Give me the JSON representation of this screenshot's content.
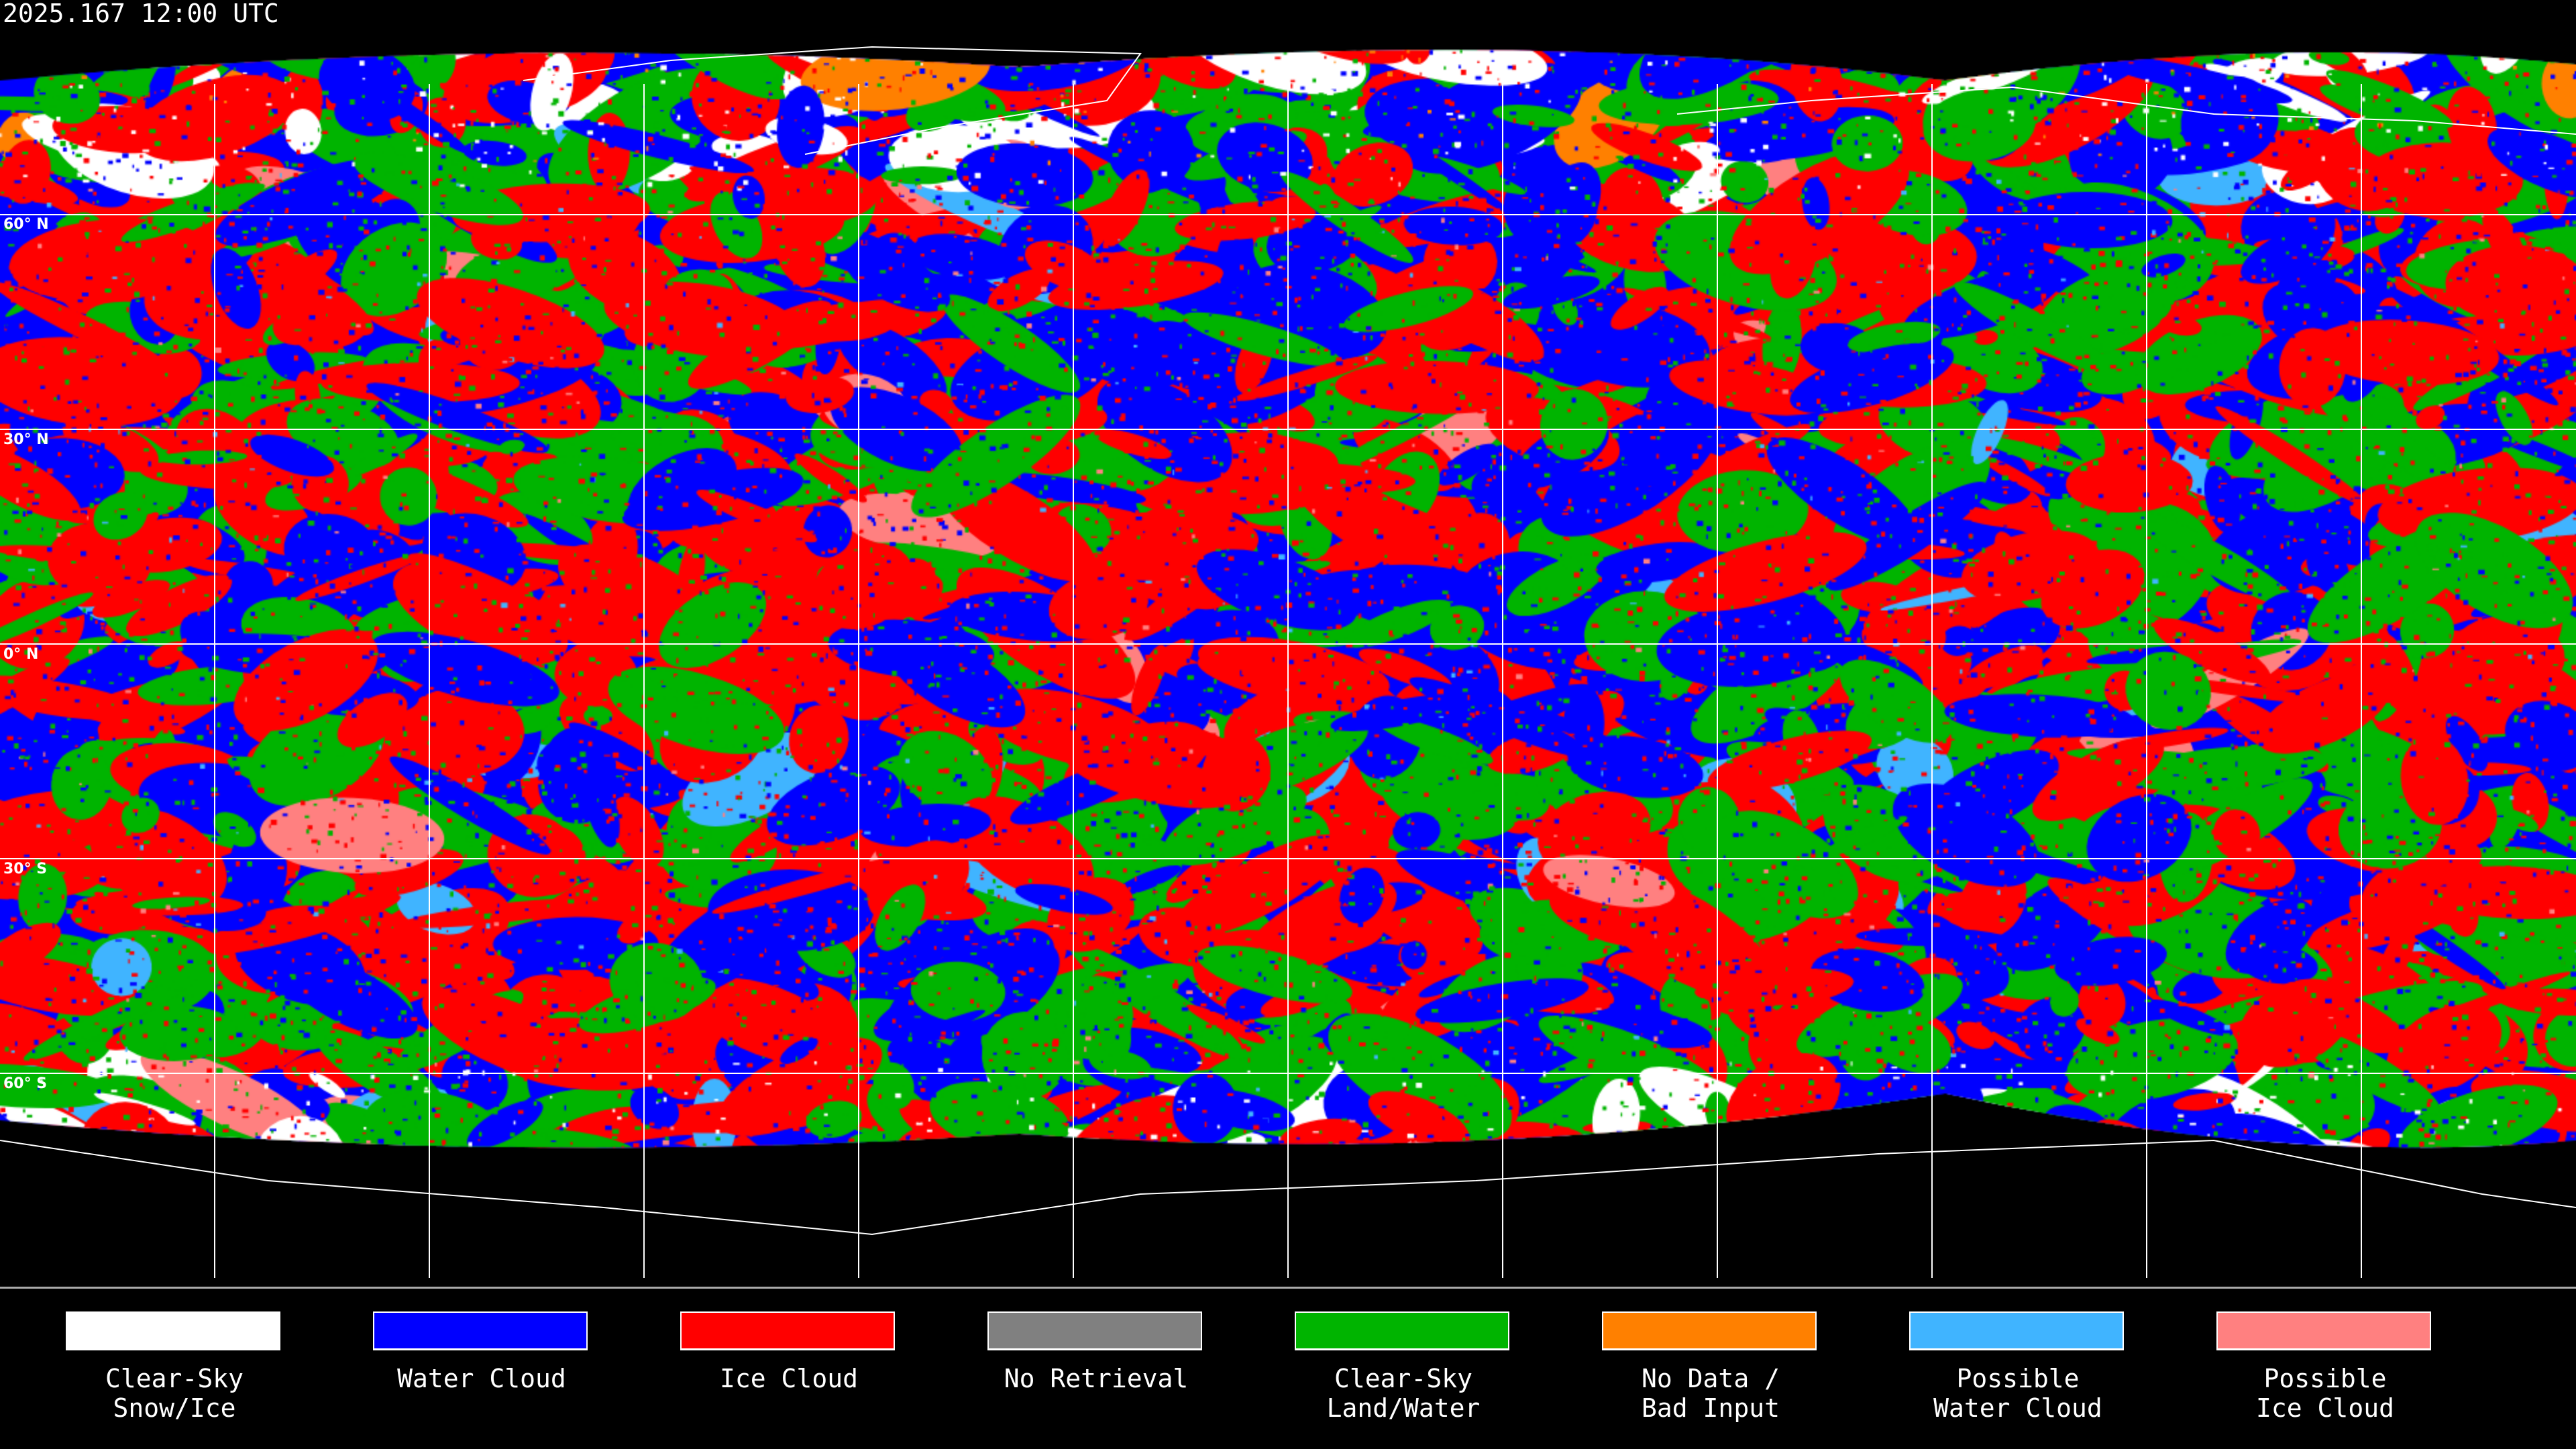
{
  "header": {
    "timestamp": "2025.167 12:00 UTC"
  },
  "map": {
    "projection": "equirectangular",
    "graticule_interval_deg": 30,
    "lat_labels": [
      "60° N",
      "30° N",
      "0° N",
      "30° S",
      "60° S"
    ],
    "coastlines": true
  },
  "legend": {
    "items": [
      {
        "label": "Clear-Sky\nSnow/Ice",
        "color": "#ffffff"
      },
      {
        "label": "Water Cloud",
        "color": "#0000ff"
      },
      {
        "label": "Ice Cloud",
        "color": "#ff0000"
      },
      {
        "label": "No Retrieval",
        "color": "#808080"
      },
      {
        "label": "Clear-Sky\nLand/Water",
        "color": "#00b400"
      },
      {
        "label": "No Data /\nBad Input",
        "color": "#ff8000"
      },
      {
        "label": "Possible\nWater Cloud",
        "color": "#40b4ff"
      },
      {
        "label": "Possible\nIce Cloud",
        "color": "#ff8080"
      }
    ]
  }
}
